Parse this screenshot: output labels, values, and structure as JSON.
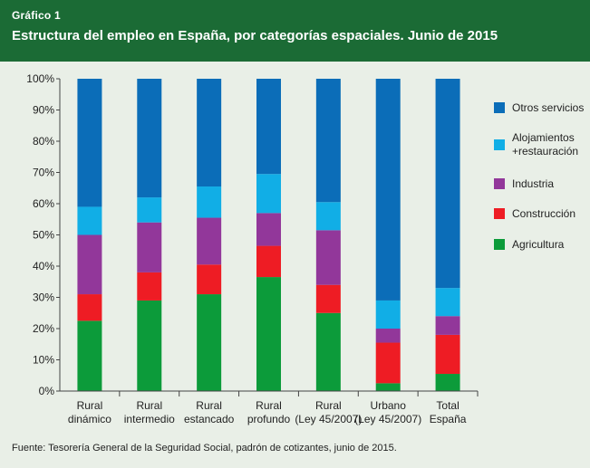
{
  "header": {
    "figure_label": "Gráfico 1",
    "title": "Estructura del empleo en España, por categorías espaciales. Junio de 2015"
  },
  "source": "Fuente: Tesorería General de la Seguridad Social, padrón de cotizantes, junio de 2015.",
  "colors": {
    "header_bg": "#1b6b35",
    "page_bg": "#e9efe7",
    "Agricultura": "#0c9b3a",
    "Construcción": "#ee1c24",
    "Industria": "#92379a",
    "Alojamientos +restauración": "#11aee6",
    "Otros servicios": "#0b6db8"
  },
  "chart_data": {
    "type": "bar",
    "stacked": true,
    "title": "Estructura del empleo en España, por categorías espaciales. Junio de 2015",
    "categories": [
      [
        "Rural",
        "dinámico"
      ],
      [
        "Rural",
        "intermedio"
      ],
      [
        "Rural",
        "estancado"
      ],
      [
        "Rural",
        "profundo"
      ],
      [
        "Rural",
        "(Ley 45/2007)"
      ],
      [
        "Urbano",
        "(Ley 45/2007)"
      ],
      [
        "Total",
        "España"
      ]
    ],
    "series": [
      {
        "name": "Agricultura",
        "values": [
          22.5,
          29,
          31,
          36.5,
          25,
          2.5,
          5.5
        ]
      },
      {
        "name": "Construcción",
        "values": [
          8.5,
          9,
          9.5,
          10,
          9,
          13,
          12.5
        ]
      },
      {
        "name": "Industria",
        "values": [
          19,
          16,
          15,
          10.5,
          17.5,
          4.5,
          6
        ]
      },
      {
        "name": "Alojamientos +restauración",
        "values": [
          9,
          8,
          10,
          12.5,
          9,
          9,
          9
        ]
      },
      {
        "name": "Otros servicios",
        "values": [
          41,
          38,
          34.5,
          30.5,
          39.5,
          71,
          67
        ]
      }
    ],
    "legend_order": [
      "Otros servicios",
      "Alojamientos +restauración",
      "Industria",
      "Construcción",
      "Agricultura"
    ],
    "legend_labels": {
      "Otros servicios": [
        "Otros servicios"
      ],
      "Alojamientos +restauración": [
        "Alojamientos",
        "+restauración"
      ],
      "Industria": [
        "Industria"
      ],
      "Construcción": [
        "Construcción"
      ],
      "Agricultura": [
        "Agricultura"
      ]
    },
    "y_ticks": [
      "0%",
      "10%",
      "20%",
      "30%",
      "40%",
      "50%",
      "60%",
      "70%",
      "80%",
      "90%",
      "100%"
    ],
    "ylim": [
      0,
      100
    ],
    "grid": false,
    "legend_position": "right"
  }
}
